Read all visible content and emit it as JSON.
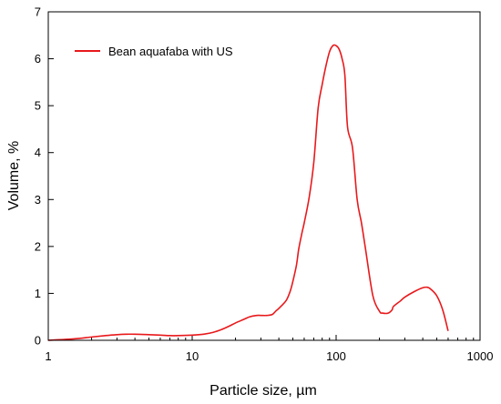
{
  "chart_data": {
    "type": "line",
    "xlabel": "Particle size, µm",
    "ylabel": "Volume, %",
    "xscale": "log",
    "xlim": [
      1,
      1000
    ],
    "ylim": [
      0,
      7
    ],
    "xticks": [
      1,
      10,
      100,
      1000
    ],
    "xtick_labels": [
      "1",
      "10",
      "100",
      "1000"
    ],
    "yticks": [
      0,
      1,
      2,
      3,
      4,
      5,
      6,
      7
    ],
    "ytick_labels": [
      "0",
      "1",
      "2",
      "3",
      "4",
      "5",
      "6",
      "7"
    ],
    "grid": false,
    "legend_position": "top-left",
    "series": [
      {
        "name": "Bean aquafaba with US",
        "color": "#e8191c",
        "x": [
          1,
          1.5,
          2,
          2.5,
          3,
          3.5,
          4,
          5,
          6,
          7,
          8,
          10,
          12,
          14,
          16,
          18,
          20,
          23,
          25,
          28,
          30,
          33,
          36,
          38,
          40,
          45,
          48,
          50,
          53,
          55,
          58,
          60,
          65,
          70,
          75,
          80,
          85,
          90,
          95,
          100,
          105,
          110,
          115,
          120,
          130,
          140,
          150,
          160,
          180,
          200,
          210,
          230,
          245,
          250,
          280,
          300,
          350,
          400,
          430,
          450,
          500,
          550,
          600
        ],
        "y": [
          0.0,
          0.03,
          0.07,
          0.1,
          0.12,
          0.13,
          0.13,
          0.12,
          0.11,
          0.1,
          0.1,
          0.11,
          0.13,
          0.17,
          0.23,
          0.3,
          0.37,
          0.45,
          0.5,
          0.53,
          0.53,
          0.53,
          0.55,
          0.62,
          0.68,
          0.85,
          1.05,
          1.25,
          1.6,
          1.95,
          2.3,
          2.5,
          3.05,
          3.8,
          4.95,
          5.45,
          5.85,
          6.15,
          6.28,
          6.28,
          6.2,
          6.0,
          5.65,
          4.55,
          4.1,
          3.0,
          2.5,
          1.95,
          0.95,
          0.62,
          0.58,
          0.58,
          0.65,
          0.72,
          0.84,
          0.92,
          1.04,
          1.12,
          1.13,
          1.1,
          0.95,
          0.65,
          0.2
        ]
      }
    ]
  }
}
